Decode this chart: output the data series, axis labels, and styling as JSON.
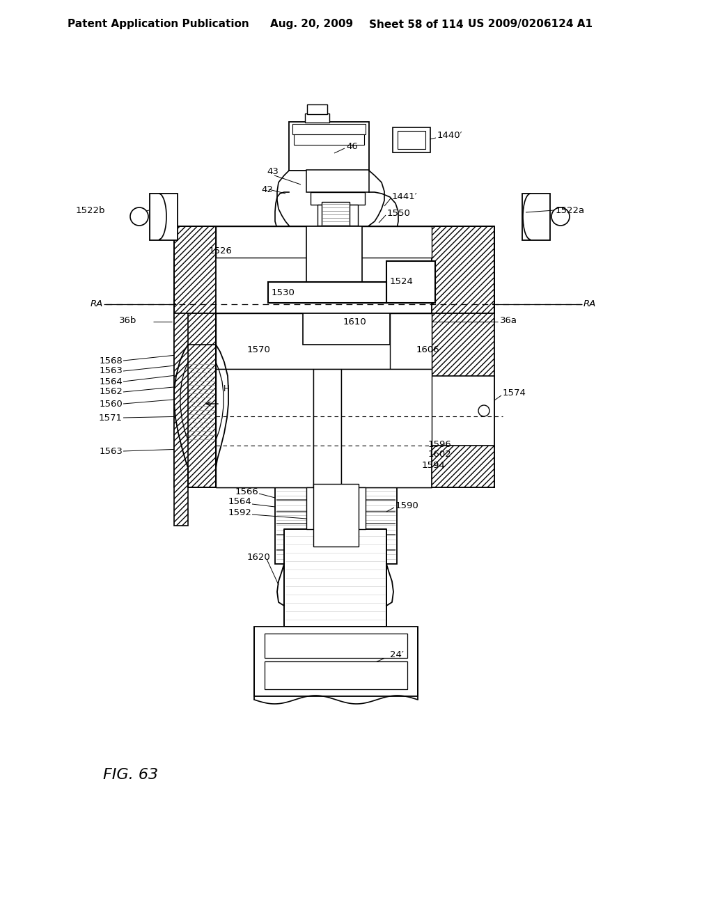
{
  "bg_color": "#ffffff",
  "header_text": "Patent Application Publication",
  "header_date": "Aug. 20, 2009",
  "header_sheet": "Sheet 58 of 114",
  "header_patent": "US 2009/0206124 A1",
  "figure_label": "FIG. 63",
  "header_fontsize": 11,
  "label_fontsize": 9.5,
  "lc": "#000000"
}
